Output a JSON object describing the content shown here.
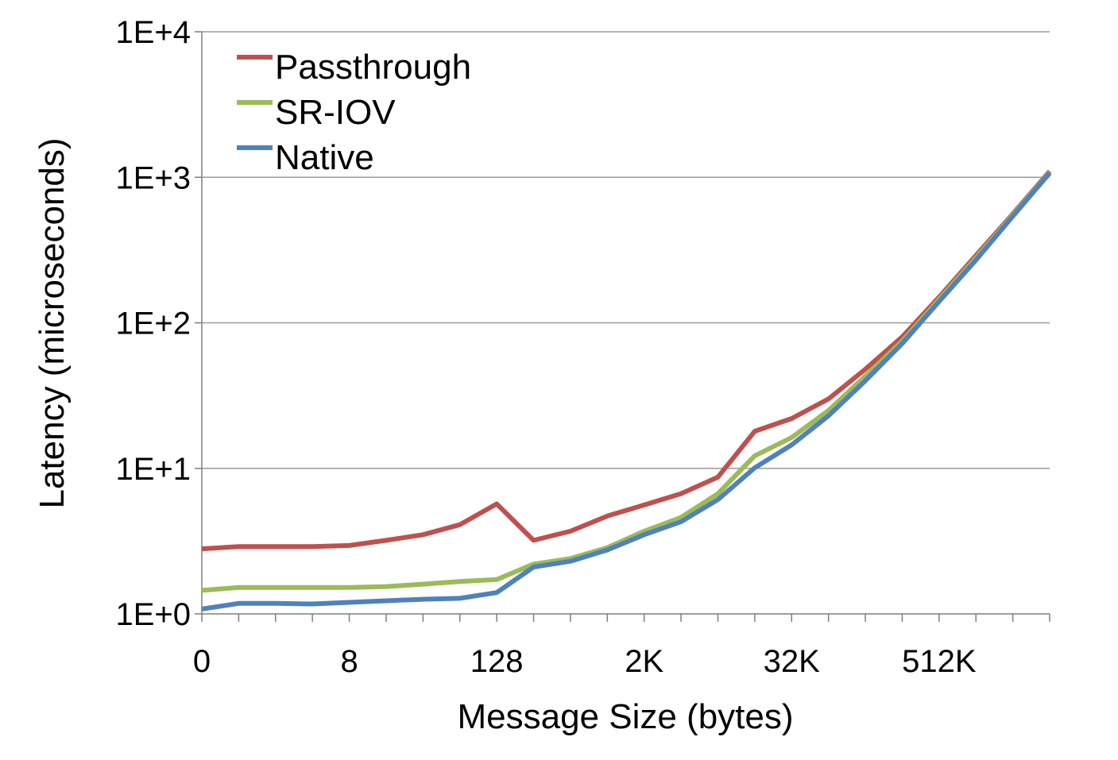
{
  "chart_data": {
    "type": "line",
    "title": "",
    "xlabel": "Message Size (bytes)",
    "ylabel": "Latency (microseconds)",
    "y_scale": "log10",
    "ylim": [
      1,
      10000
    ],
    "y_ticks": [
      {
        "value": 1,
        "label": "1E+0"
      },
      {
        "value": 10,
        "label": "1E+1"
      },
      {
        "value": 100,
        "label": "1E+2"
      },
      {
        "value": 1000,
        "label": "1E+3"
      },
      {
        "value": 10000,
        "label": "1E+4"
      }
    ],
    "x_index_range": [
      0,
      23
    ],
    "x_tick_labels": [
      {
        "index": 0,
        "label": "0"
      },
      {
        "index": 4,
        "label": "8"
      },
      {
        "index": 8,
        "label": "128"
      },
      {
        "index": 12,
        "label": "2K"
      },
      {
        "index": 16,
        "label": "32K"
      },
      {
        "index": 20,
        "label": "512K"
      }
    ],
    "grid": true,
    "legend_position": "top-left",
    "series": [
      {
        "name": "Passthrough",
        "color": "#c0504d",
        "values": [
          2.8,
          2.9,
          2.9,
          2.9,
          2.95,
          3.2,
          3.5,
          4.1,
          5.7,
          3.2,
          3.7,
          4.7,
          5.6,
          6.7,
          8.7,
          18,
          22,
          30,
          48,
          80,
          150,
          290,
          560,
          1100
        ]
      },
      {
        "name": "SR-IOV",
        "color": "#9bbb59",
        "values": [
          1.45,
          1.52,
          1.52,
          1.52,
          1.52,
          1.54,
          1.6,
          1.67,
          1.72,
          2.2,
          2.4,
          2.85,
          3.7,
          4.6,
          6.7,
          12.2,
          16.3,
          25,
          43,
          75,
          145,
          280,
          550,
          1080
        ]
      },
      {
        "name": "Native",
        "color": "#4f81bd",
        "values": [
          1.08,
          1.18,
          1.18,
          1.17,
          1.2,
          1.23,
          1.26,
          1.28,
          1.4,
          2.1,
          2.3,
          2.75,
          3.5,
          4.3,
          6.1,
          10.1,
          14.5,
          23,
          40,
          72,
          140,
          270,
          540,
          1070
        ]
      }
    ]
  }
}
